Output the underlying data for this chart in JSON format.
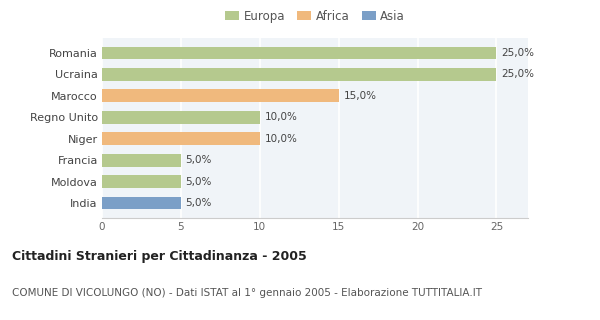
{
  "categories": [
    "Romania",
    "Ucraina",
    "Marocco",
    "Regno Unito",
    "Niger",
    "Francia",
    "Moldova",
    "India"
  ],
  "values": [
    25.0,
    25.0,
    15.0,
    10.0,
    10.0,
    5.0,
    5.0,
    5.0
  ],
  "colors": [
    "#b5c98e",
    "#b5c98e",
    "#f0b97d",
    "#b5c98e",
    "#f0b97d",
    "#b5c98e",
    "#b5c98e",
    "#7b9fc7"
  ],
  "continent_colors": {
    "Europa": "#b5c98e",
    "Africa": "#f0b97d",
    "Asia": "#7b9fc7"
  },
  "legend_labels": [
    "Europa",
    "Africa",
    "Asia"
  ],
  "title": "Cittadini Stranieri per Cittadinanza - 2005",
  "subtitle": "COMUNE DI VICOLUNGO (NO) - Dati ISTAT al 1° gennaio 2005 - Elaborazione TUTTITALIA.IT",
  "xlim": [
    0,
    27
  ],
  "xticks": [
    0,
    5,
    10,
    15,
    20,
    25
  ],
  "background_color": "#ffffff",
  "bar_background": "#f0f4f8",
  "title_fontsize": 9,
  "subtitle_fontsize": 7.5
}
